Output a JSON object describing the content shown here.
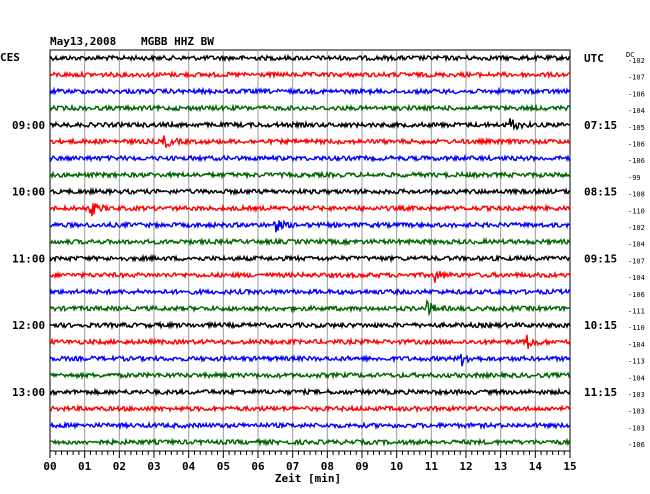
{
  "header": {
    "date": "May13,2008",
    "station": "MGBB HHZ BW",
    "left_tz": "CES",
    "right_tz": "UTC",
    "dc_label": "DC"
  },
  "chart_data": {
    "type": "line",
    "title": "May13,2008   MGBB HHZ BW",
    "xlabel": "Zeit [min]",
    "ylabel": "",
    "xlim": [
      0,
      15
    ],
    "x_ticks": [
      "00",
      "01",
      "02",
      "03",
      "04",
      "05",
      "06",
      "07",
      "08",
      "09",
      "10",
      "11",
      "12",
      "13",
      "14",
      "15"
    ],
    "grid": true,
    "trace_colors": [
      "#000000",
      "#ff0000",
      "#0000ff",
      "#006400"
    ],
    "left_hour_labels": [
      {
        "row": 4,
        "text": "09:00"
      },
      {
        "row": 8,
        "text": "10:00"
      },
      {
        "row": 12,
        "text": "11:00"
      },
      {
        "row": 16,
        "text": "12:00"
      },
      {
        "row": 20,
        "text": "13:00"
      }
    ],
    "right_hour_labels": [
      {
        "row": 0,
        "text": "UTC"
      },
      {
        "row": 4,
        "text": "07:15"
      },
      {
        "row": 8,
        "text": "08:15"
      },
      {
        "row": 12,
        "text": "09:15"
      },
      {
        "row": 16,
        "text": "10:15"
      },
      {
        "row": 20,
        "text": "11:15"
      }
    ],
    "dc_offsets": [
      -102,
      -107,
      -106,
      -104,
      -105,
      -106,
      -106,
      -99,
      -108,
      -110,
      -102,
      -104,
      -107,
      -104,
      -106,
      -111,
      -110,
      -104,
      -113,
      -104,
      -103,
      -103,
      -103,
      -106
    ]
  }
}
